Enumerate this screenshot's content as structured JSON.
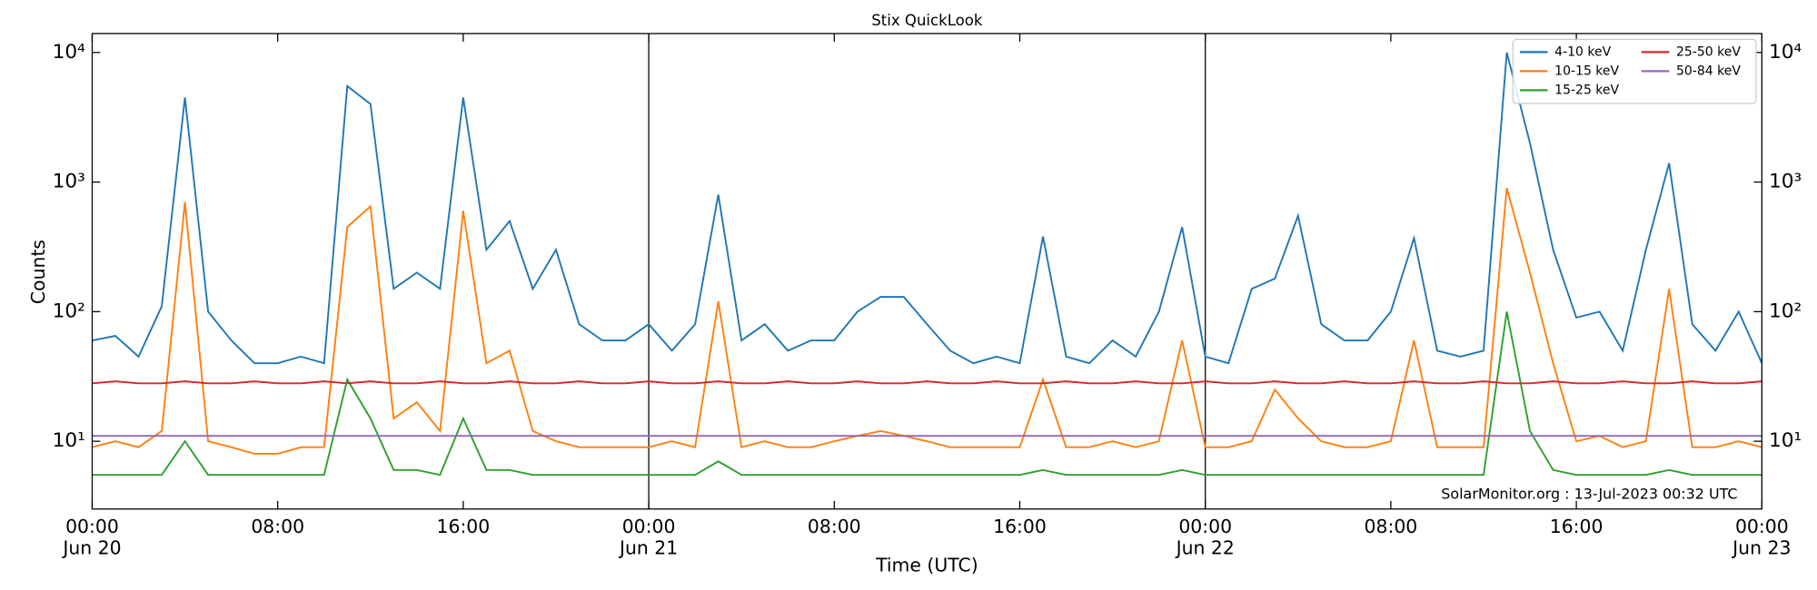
{
  "chart_data": {
    "type": "line",
    "title": "Stix QuickLook",
    "xlabel": "Time (UTC)",
    "ylabel": "Counts",
    "annotation": "SolarMonitor.org : 13-Jul-2023 00:32 UTC",
    "x": [
      "Jun 20 00:00",
      "Jun 20 01:00",
      "Jun 20 02:00",
      "Jun 20 03:00",
      "Jun 20 04:00",
      "Jun 20 05:00",
      "Jun 20 06:00",
      "Jun 20 07:00",
      "Jun 20 08:00",
      "Jun 20 09:00",
      "Jun 20 10:00",
      "Jun 20 11:00",
      "Jun 20 12:00",
      "Jun 20 13:00",
      "Jun 20 14:00",
      "Jun 20 15:00",
      "Jun 20 16:00",
      "Jun 20 17:00",
      "Jun 20 18:00",
      "Jun 20 19:00",
      "Jun 20 20:00",
      "Jun 20 21:00",
      "Jun 20 22:00",
      "Jun 20 23:00",
      "Jun 21 00:00",
      "Jun 21 01:00",
      "Jun 21 02:00",
      "Jun 21 03:00",
      "Jun 21 04:00",
      "Jun 21 05:00",
      "Jun 21 06:00",
      "Jun 21 07:00",
      "Jun 21 08:00",
      "Jun 21 09:00",
      "Jun 21 10:00",
      "Jun 21 11:00",
      "Jun 21 12:00",
      "Jun 21 13:00",
      "Jun 21 14:00",
      "Jun 21 15:00",
      "Jun 21 16:00",
      "Jun 21 17:00",
      "Jun 21 18:00",
      "Jun 21 19:00",
      "Jun 21 20:00",
      "Jun 21 21:00",
      "Jun 21 22:00",
      "Jun 21 23:00",
      "Jun 22 00:00",
      "Jun 22 01:00",
      "Jun 22 02:00",
      "Jun 22 03:00",
      "Jun 22 04:00",
      "Jun 22 05:00",
      "Jun 22 06:00",
      "Jun 22 07:00",
      "Jun 22 08:00",
      "Jun 22 09:00",
      "Jun 22 10:00",
      "Jun 22 11:00",
      "Jun 22 12:00",
      "Jun 22 13:00",
      "Jun 22 14:00",
      "Jun 22 15:00",
      "Jun 22 16:00",
      "Jun 22 17:00",
      "Jun 22 18:00",
      "Jun 22 19:00",
      "Jun 22 20:00",
      "Jun 22 21:00",
      "Jun 22 22:00",
      "Jun 22 23:00",
      "Jun 23 00:00"
    ],
    "series": [
      {
        "name": "4-10 keV",
        "color": "#1f77b4",
        "values": [
          60,
          65,
          45,
          110,
          4500,
          100,
          60,
          40,
          40,
          45,
          40,
          5500,
          4000,
          150,
          200,
          150,
          4500,
          300,
          500,
          150,
          300,
          80,
          60,
          60,
          80,
          50,
          80,
          800,
          60,
          80,
          50,
          60,
          60,
          100,
          130,
          130,
          80,
          50,
          40,
          45,
          40,
          380,
          45,
          40,
          60,
          45,
          100,
          450,
          45,
          40,
          150,
          180,
          550,
          80,
          60,
          60,
          100,
          370,
          50,
          45,
          50,
          10000,
          2000,
          300,
          90,
          100,
          50,
          300,
          1400,
          80,
          50,
          100,
          40
        ]
      },
      {
        "name": "10-15 keV",
        "color": "#ff7f0e",
        "values": [
          9,
          10,
          9,
          12,
          700,
          10,
          9,
          8,
          8,
          9,
          9,
          450,
          650,
          15,
          20,
          12,
          600,
          40,
          50,
          12,
          10,
          9,
          9,
          9,
          9,
          10,
          9,
          120,
          9,
          10,
          9,
          9,
          10,
          11,
          12,
          11,
          10,
          9,
          9,
          9,
          9,
          30,
          9,
          9,
          10,
          9,
          10,
          60,
          9,
          9,
          10,
          25,
          15,
          10,
          9,
          9,
          10,
          60,
          9,
          9,
          9,
          900,
          200,
          40,
          10,
          11,
          9,
          10,
          150,
          9,
          9,
          10,
          9
        ]
      },
      {
        "name": "15-25 keV",
        "color": "#2ca02c",
        "values": [
          5.5,
          5.5,
          5.5,
          5.5,
          10,
          5.5,
          5.5,
          5.5,
          5.5,
          5.5,
          5.5,
          30,
          15,
          6,
          6,
          5.5,
          15,
          6,
          6,
          5.5,
          5.5,
          5.5,
          5.5,
          5.5,
          5.5,
          5.5,
          5.5,
          7,
          5.5,
          5.5,
          5.5,
          5.5,
          5.5,
          5.5,
          5.5,
          5.5,
          5.5,
          5.5,
          5.5,
          5.5,
          5.5,
          6,
          5.5,
          5.5,
          5.5,
          5.5,
          5.5,
          6,
          5.5,
          5.5,
          5.5,
          5.5,
          5.5,
          5.5,
          5.5,
          5.5,
          5.5,
          5.5,
          5.5,
          5.5,
          5.5,
          100,
          12,
          6,
          5.5,
          5.5,
          5.5,
          5.5,
          6,
          5.5,
          5.5,
          5.5,
          5.5
        ]
      },
      {
        "name": "25-50 keV",
        "color": "#d62728",
        "values": [
          28,
          29,
          28,
          28,
          29,
          28,
          28,
          29,
          28,
          28,
          29,
          28,
          29,
          28,
          28,
          29,
          28,
          28,
          29,
          28,
          28,
          29,
          28,
          28,
          29,
          28,
          28,
          29,
          28,
          28,
          29,
          28,
          28,
          29,
          28,
          28,
          29,
          28,
          28,
          29,
          28,
          28,
          29,
          28,
          28,
          29,
          28,
          28,
          29,
          28,
          28,
          29,
          28,
          28,
          29,
          28,
          28,
          29,
          28,
          28,
          29,
          28,
          28,
          29,
          28,
          28,
          29,
          28,
          28,
          29,
          28,
          28,
          29
        ]
      },
      {
        "name": "50-84 keV",
        "color": "#9467bd",
        "values": [
          11,
          11,
          11,
          11,
          11,
          11,
          11,
          11,
          11,
          11,
          11,
          11,
          11,
          11,
          11,
          11,
          11,
          11,
          11,
          11,
          11,
          11,
          11,
          11,
          11,
          11,
          11,
          11,
          11,
          11,
          11,
          11,
          11,
          11,
          11,
          11,
          11,
          11,
          11,
          11,
          11,
          11,
          11,
          11,
          11,
          11,
          11,
          11,
          11,
          11,
          11,
          11,
          11,
          11,
          11,
          11,
          11,
          11,
          11,
          11,
          11,
          11,
          11,
          11,
          11,
          11,
          11,
          11,
          11,
          11,
          11,
          11,
          11
        ]
      }
    ],
    "xlim": [
      "Jun 20 00:00",
      "Jun 23 00:00"
    ],
    "xticks": [
      {
        "value": "Jun 20 00:00",
        "label": "00:00\nJun 20"
      },
      {
        "value": "Jun 20 08:00",
        "label": "08:00"
      },
      {
        "value": "Jun 20 16:00",
        "label": "16:00"
      },
      {
        "value": "Jun 21 00:00",
        "label": "00:00\nJun 21"
      },
      {
        "value": "Jun 21 08:00",
        "label": "08:00"
      },
      {
        "value": "Jun 21 16:00",
        "label": "16:00"
      },
      {
        "value": "Jun 22 00:00",
        "label": "00:00\nJun 22"
      },
      {
        "value": "Jun 22 08:00",
        "label": "08:00"
      },
      {
        "value": "Jun 22 16:00",
        "label": "16:00"
      },
      {
        "value": "Jun 23 00:00",
        "label": "00:00\nJun 23"
      }
    ],
    "vlines": [
      "Jun 21 00:00",
      "Jun 22 00:00"
    ],
    "ylim": [
      3,
      14000
    ],
    "log_y": true,
    "yticks": [
      {
        "value": 10,
        "label": "10¹"
      },
      {
        "value": 100,
        "label": "10²"
      },
      {
        "value": 1000,
        "label": "10³"
      },
      {
        "value": 10000,
        "label": "10⁴"
      }
    ],
    "legend": "upper right",
    "legend_columns": 2
  }
}
